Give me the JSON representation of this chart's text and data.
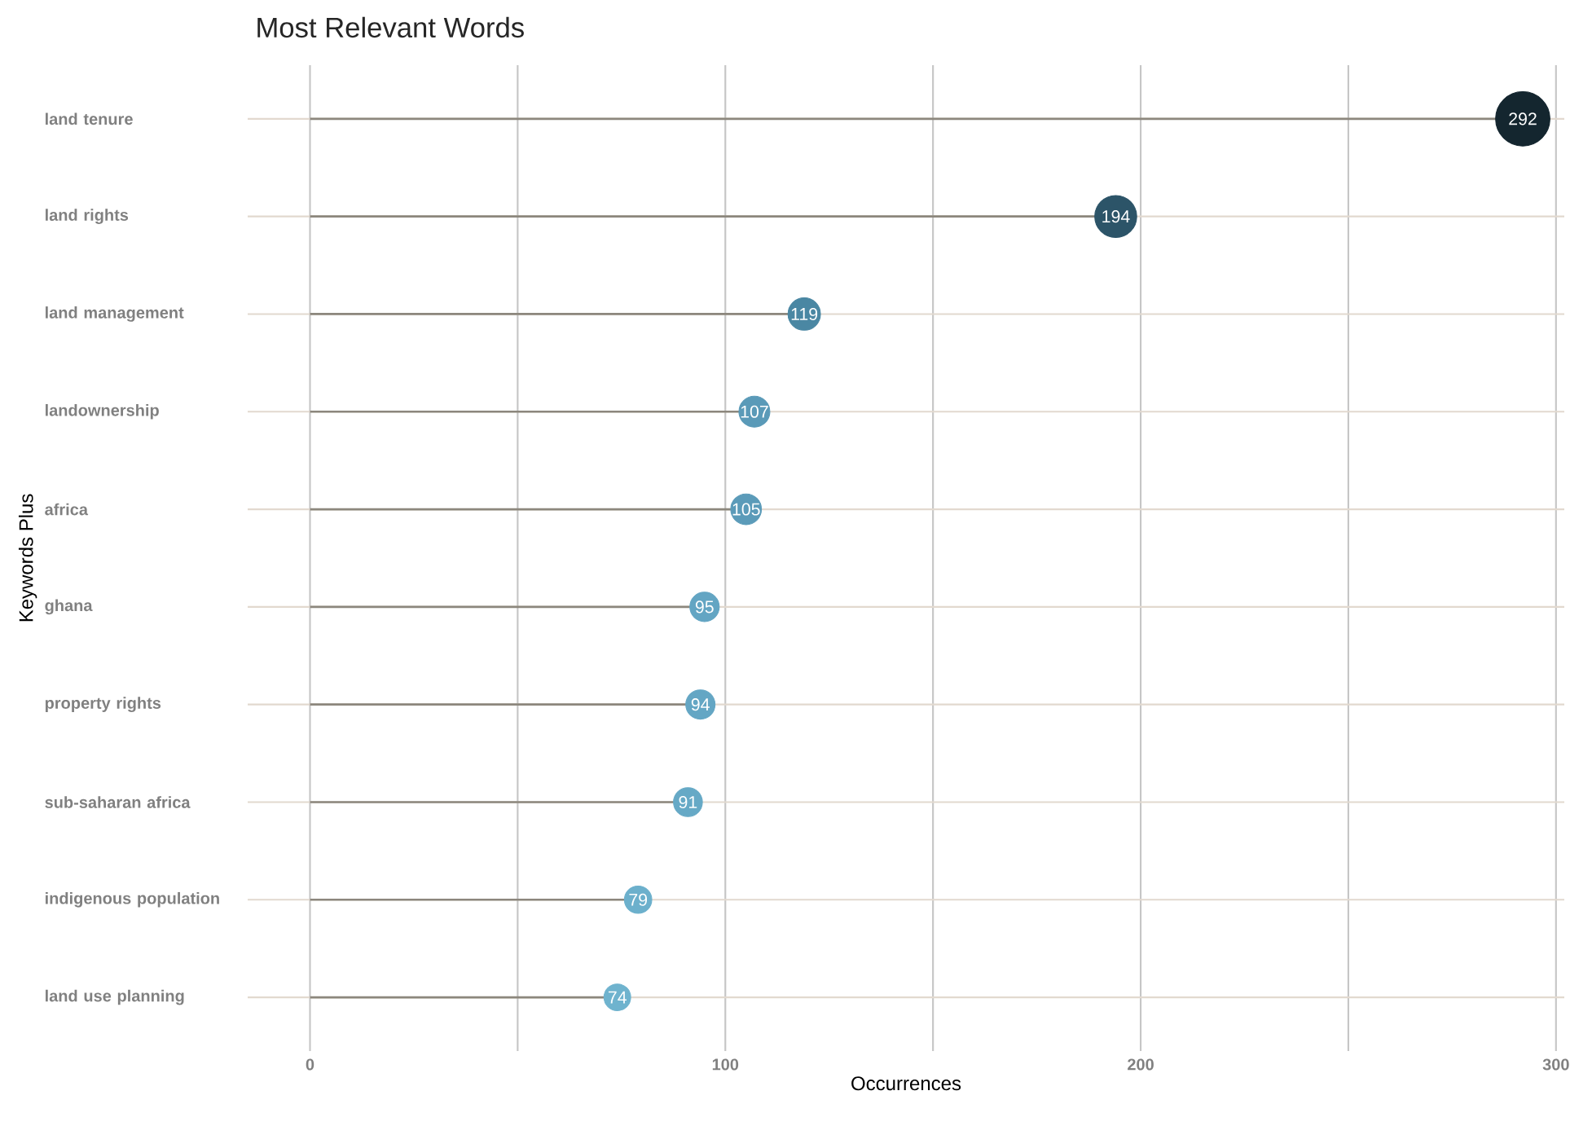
{
  "chart_data": {
    "type": "lollipop",
    "orientation": "horizontal",
    "title": "Most Relevant Words",
    "xlabel": "Occurrences",
    "ylabel": "Keywords Plus",
    "categories": [
      "land tenure",
      "land rights",
      "land management",
      "landownership",
      "africa",
      "ghana",
      "property rights",
      "sub-saharan africa",
      "indigenous population",
      "land use planning"
    ],
    "values": [
      292,
      194,
      119,
      107,
      105,
      95,
      94,
      91,
      79,
      74
    ],
    "value_labels": [
      "292",
      "194",
      "119",
      "107",
      "105",
      "95",
      "94",
      "91",
      "79",
      "74"
    ],
    "colors": [
      "#14262f",
      "#2c5468",
      "#4a87a3",
      "#5a9ab8",
      "#5b9bb9",
      "#63a5c3",
      "#64a6c4",
      "#66a9c6",
      "#6cb0cc",
      "#6fb3ce"
    ],
    "xlim": [
      -15,
      302
    ],
    "xticks": [
      0,
      {
        "value": 50,
        "label": null
      },
      100,
      {
        "value": 150,
        "label": null
      },
      200,
      {
        "value": 250,
        "label": null
      },
      300
    ],
    "grid": true,
    "marker": "circle"
  }
}
